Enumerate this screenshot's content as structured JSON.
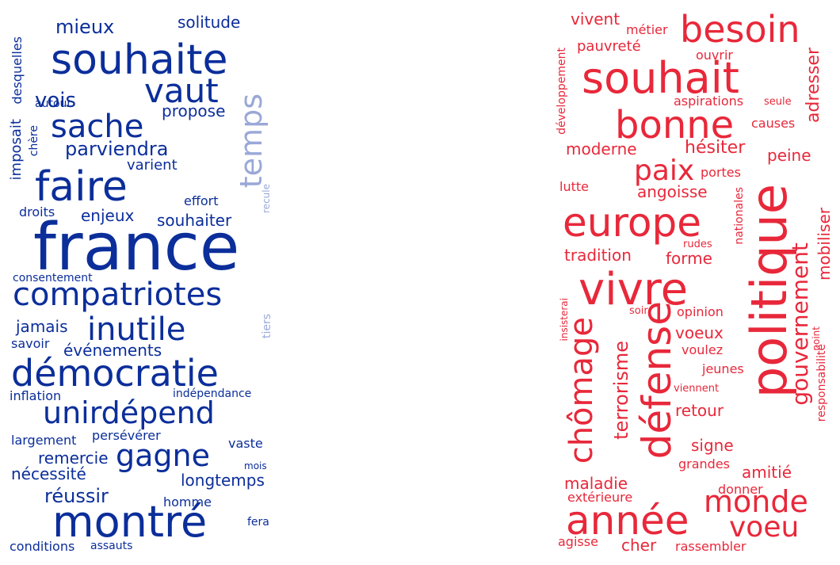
{
  "palette": {
    "blue": "#0b2e9a",
    "blue_light": "#9aa8d8",
    "red": "#e8283a",
    "red_light": "#f08a93"
  },
  "clouds": {
    "left": {
      "color_dark": "#0b2e9a",
      "words": [
        "france",
        "souhaite",
        "faire",
        "démocratie",
        "compatriotes",
        "montré",
        "inutile",
        "sache",
        "vaut",
        "temps",
        "unirdépend",
        "gagne",
        "parviendra",
        "vois",
        "mieux",
        "propose",
        "solitude",
        "réussir",
        "remercie",
        "nécessité",
        "longtemps",
        "souhaiter",
        "enjeux",
        "événements",
        "jamais",
        "varient",
        "imposait",
        "desquelles",
        "chère",
        "autour",
        "droits",
        "effort",
        "recule",
        "consentement",
        "savoir",
        "tiers",
        "inflation",
        "indépendance",
        "largement",
        "persévérer",
        "vaste",
        "mois",
        "homme",
        "fera",
        "conditions",
        "assauts"
      ]
    },
    "right": {
      "color_dark": "#e8283a",
      "words": [
        "souhait",
        "politique",
        "vivre",
        "europe",
        "bonne",
        "année",
        "défense",
        "besoin",
        "chômage",
        "paix",
        "monde",
        "voeu",
        "gouvernement",
        "terrorisme",
        "moderne",
        "hésiter",
        "peine",
        "angoisse",
        "tradition",
        "forme",
        "adresser",
        "vivent",
        "métier",
        "pauvreté",
        "ouvrir",
        "développement",
        "aspirations",
        "seule",
        "causes",
        "lutte",
        "portes",
        "nationales",
        "rudes",
        "mobiliser",
        "insisterai",
        "soir",
        "opinion",
        "voeux",
        "voulez",
        "point",
        "jeunes",
        "viennent",
        "responsabilité",
        "retour",
        "signe",
        "grandes",
        "amitié",
        "maladie",
        "donner",
        "extérieure",
        "agisse",
        "cher",
        "rassembler"
      ]
    }
  }
}
